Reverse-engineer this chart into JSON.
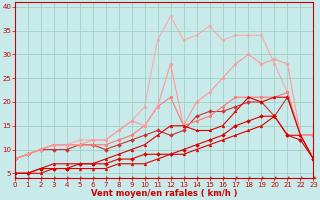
{
  "x": [
    0,
    1,
    2,
    3,
    4,
    5,
    6,
    7,
    8,
    9,
    10,
    11,
    12,
    13,
    14,
    15,
    16,
    17,
    18,
    19,
    20,
    21,
    22,
    23
  ],
  "series": [
    {
      "y": [
        5,
        5,
        5,
        6,
        6,
        6,
        6,
        6,
        7,
        7,
        7,
        8,
        9,
        9,
        10,
        11,
        12,
        13,
        14,
        15,
        17,
        13,
        13,
        8
      ],
      "color": "#dd0000",
      "lw": 0.8,
      "marker": "^",
      "ms": 2.0,
      "zorder": 3
    },
    {
      "y": [
        5,
        5,
        6,
        6,
        6,
        7,
        7,
        7,
        8,
        8,
        9,
        9,
        9,
        10,
        11,
        12,
        13,
        15,
        16,
        17,
        17,
        13,
        12,
        8
      ],
      "color": "#dd0000",
      "lw": 0.8,
      "marker": "D",
      "ms": 2.0,
      "zorder": 3
    },
    {
      "y": [
        5,
        5,
        6,
        7,
        7,
        7,
        7,
        8,
        9,
        10,
        11,
        13,
        15,
        15,
        14,
        14,
        15,
        18,
        21,
        20,
        21,
        21,
        13,
        8
      ],
      "color": "#dd0000",
      "lw": 0.8,
      "marker": "^",
      "ms": 2.0,
      "zorder": 3
    },
    {
      "y": [
        8,
        9,
        10,
        10,
        10,
        11,
        11,
        10,
        11,
        12,
        13,
        14,
        13,
        14,
        17,
        18,
        18,
        19,
        20,
        20,
        17,
        21,
        13,
        13
      ],
      "color": "#cc3333",
      "lw": 0.8,
      "marker": "D",
      "ms": 2.0,
      "zorder": 2
    },
    {
      "y": [
        8,
        9,
        10,
        11,
        11,
        11,
        11,
        11,
        12,
        13,
        15,
        19,
        21,
        15,
        16,
        17,
        19,
        21,
        21,
        21,
        21,
        22,
        13,
        13
      ],
      "color": "#ff7777",
      "lw": 0.8,
      "marker": "o",
      "ms": 2.0,
      "zorder": 2
    },
    {
      "y": [
        8,
        9,
        10,
        11,
        11,
        11,
        12,
        12,
        14,
        16,
        15,
        19,
        28,
        15,
        20,
        22,
        25,
        28,
        30,
        28,
        29,
        28,
        13,
        13
      ],
      "color": "#ff9999",
      "lw": 0.8,
      "marker": "o",
      "ms": 2.0,
      "zorder": 2
    },
    {
      "y": [
        8,
        9,
        10,
        11,
        11,
        12,
        12,
        12,
        14,
        16,
        19,
        33,
        38,
        33,
        34,
        36,
        33,
        34,
        34,
        34,
        28,
        22,
        13,
        13
      ],
      "color": "#ffaaaa",
      "lw": 0.8,
      "marker": "o",
      "ms": 2.0,
      "zorder": 1
    }
  ],
  "xlim": [
    0,
    23
  ],
  "ylim": [
    4,
    41
  ],
  "yticks": [
    5,
    10,
    15,
    20,
    25,
    30,
    35,
    40
  ],
  "xticks": [
    0,
    1,
    2,
    3,
    4,
    5,
    6,
    7,
    8,
    9,
    10,
    11,
    12,
    13,
    14,
    15,
    16,
    17,
    18,
    19,
    20,
    21,
    22,
    23
  ],
  "xlabel": "Vent moyen/en rafales ( km/h )",
  "bg_color": "#c8eaea",
  "grid_color": "#99ccbb",
  "label_color": "#cc0000",
  "spine_color": "#cc0000",
  "tick_fontsize": 5,
  "xlabel_fontsize": 6
}
